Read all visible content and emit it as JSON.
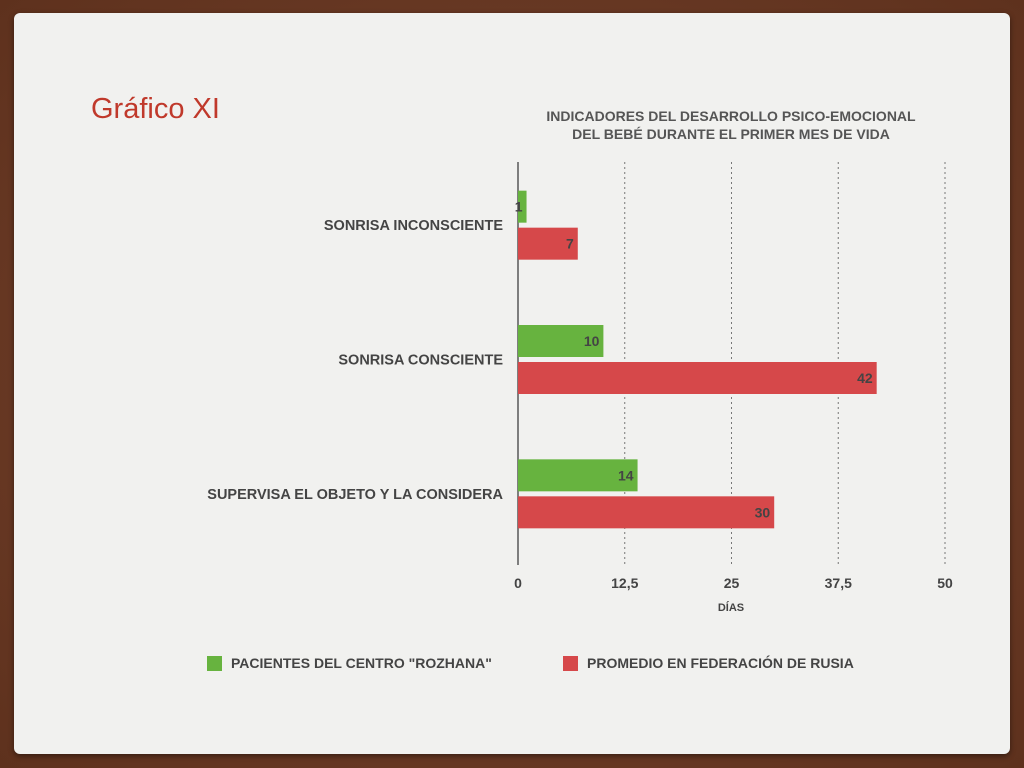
{
  "slide": {
    "title": "Gráfico XI"
  },
  "chart_data": {
    "type": "bar",
    "orientation": "horizontal",
    "title_lines": [
      "INDICADORES DEL DESARROLLO PSICO-EMOCIONAL",
      "DEL BEBÉ DURANTE EL PRIMER MES DE VIDA"
    ],
    "categories": [
      "SONRISA INCONSCIENTE",
      "SONRISA CONSCIENTE",
      "SUPERVISA EL OBJETO Y LA CONSIDERA"
    ],
    "series": [
      {
        "name": "PACIENTES DEL CENTRO \"ROZHANA\"",
        "color": "#67b33f",
        "values": [
          1,
          10,
          14
        ]
      },
      {
        "name": "PROMEDIO EN FEDERACIÓN DE RUSIA",
        "color": "#d6484a",
        "values": [
          7,
          42,
          30
        ]
      }
    ],
    "xlabel": "DÍAS",
    "xlim": [
      0,
      50
    ],
    "xticks": [
      0,
      12.5,
      25,
      37.5,
      50
    ],
    "xtick_labels": [
      "0",
      "12,5",
      "25",
      "37,5",
      "50"
    ],
    "grid": "vertical dashed",
    "legend": "bottom",
    "data_labels": true
  }
}
